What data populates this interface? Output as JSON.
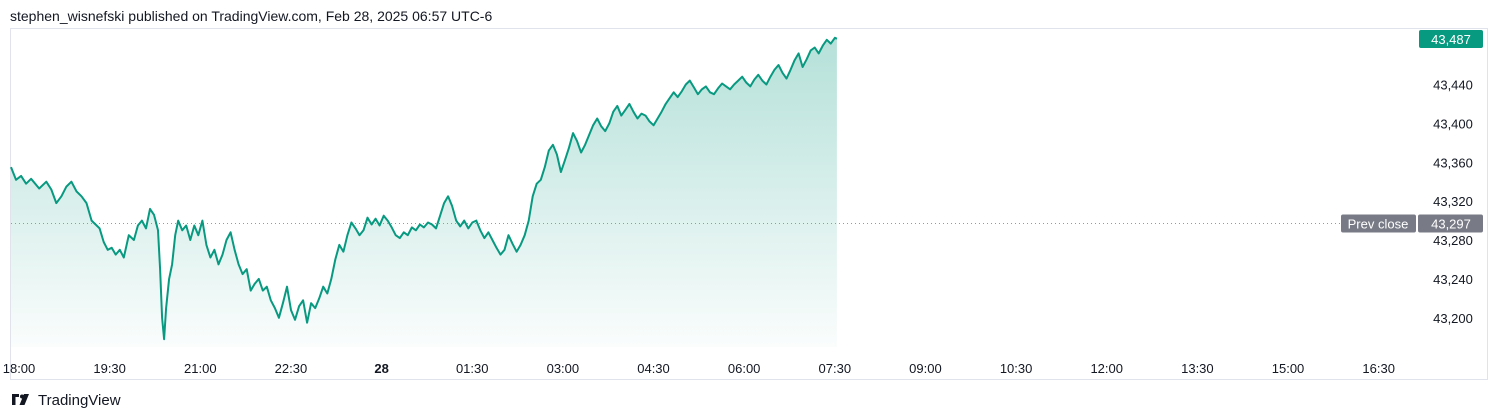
{
  "header": {
    "published_text": "stephen_wisnefski published on TradingView.com, Feb 28, 2025 06:57 UTC-6"
  },
  "footer": {
    "brand": "TradingView"
  },
  "colors": {
    "line": "#089981",
    "fill_top": "#c8ebe3",
    "label_bg": "#089981",
    "prev_close_bg": "#787b86",
    "grid": "#e0e3eb"
  },
  "chart_data": {
    "type": "area",
    "title": "",
    "xlabel": "",
    "ylabel": "",
    "ylim": [
      43170,
      43495
    ],
    "x_ticks": [
      {
        "label": "18:00",
        "t": 0
      },
      {
        "label": "19:30",
        "t": 90
      },
      {
        "label": "21:00",
        "t": 180
      },
      {
        "label": "22:30",
        "t": 270
      },
      {
        "label": "28",
        "t": 360,
        "bold": true
      },
      {
        "label": "01:30",
        "t": 450
      },
      {
        "label": "03:00",
        "t": 540
      },
      {
        "label": "04:30",
        "t": 630
      },
      {
        "label": "06:00",
        "t": 720
      },
      {
        "label": "07:30",
        "t": 810
      },
      {
        "label": "09:00",
        "t": 900
      },
      {
        "label": "10:30",
        "t": 990
      },
      {
        "label": "12:00",
        "t": 1080
      },
      {
        "label": "13:30",
        "t": 1170
      },
      {
        "label": "15:00",
        "t": 1260
      },
      {
        "label": "16:30",
        "t": 1350
      }
    ],
    "x_domain_minutes": [
      0,
      1395
    ],
    "y_ticks": [
      43200,
      43240,
      43280,
      43320,
      43360,
      43400,
      43440
    ],
    "last_price": 43487,
    "last_price_label": "43,487",
    "prev_close": 43297,
    "prev_close_label": "43,297",
    "prev_close_text": "Prev close",
    "series": [
      {
        "points": [
          [
            0,
            43355
          ],
          [
            5,
            43342
          ],
          [
            10,
            43346
          ],
          [
            15,
            43338
          ],
          [
            20,
            43343
          ],
          [
            28,
            43333
          ],
          [
            35,
            43340
          ],
          [
            40,
            43332
          ],
          [
            45,
            43318
          ],
          [
            50,
            43325
          ],
          [
            55,
            43335
          ],
          [
            60,
            43340
          ],
          [
            65,
            43330
          ],
          [
            70,
            43325
          ],
          [
            75,
            43318
          ],
          [
            80,
            43300
          ],
          [
            88,
            43292
          ],
          [
            92,
            43278
          ],
          [
            96,
            43270
          ],
          [
            100,
            43272
          ],
          [
            104,
            43265
          ],
          [
            108,
            43270
          ],
          [
            112,
            43262
          ],
          [
            117,
            43285
          ],
          [
            122,
            43280
          ],
          [
            126,
            43295
          ],
          [
            130,
            43300
          ],
          [
            134,
            43292
          ],
          [
            138,
            43312
          ],
          [
            142,
            43306
          ],
          [
            146,
            43290
          ],
          [
            148,
            43250
          ],
          [
            150,
            43200
          ],
          [
            152,
            43178
          ],
          [
            154,
            43210
          ],
          [
            157,
            43240
          ],
          [
            160,
            43255
          ],
          [
            163,
            43285
          ],
          [
            166,
            43300
          ],
          [
            170,
            43290
          ],
          [
            174,
            43295
          ],
          [
            178,
            43280
          ],
          [
            182,
            43295
          ],
          [
            186,
            43285
          ],
          [
            190,
            43300
          ],
          [
            194,
            43275
          ],
          [
            198,
            43262
          ],
          [
            202,
            43270
          ],
          [
            206,
            43255
          ],
          [
            210,
            43265
          ],
          [
            214,
            43280
          ],
          [
            218,
            43288
          ],
          [
            222,
            43270
          ],
          [
            226,
            43255
          ],
          [
            230,
            43245
          ],
          [
            234,
            43250
          ],
          [
            238,
            43228
          ],
          [
            242,
            43235
          ],
          [
            246,
            43240
          ],
          [
            250,
            43228
          ],
          [
            254,
            43232
          ],
          [
            258,
            43218
          ],
          [
            262,
            43210
          ],
          [
            266,
            43200
          ],
          [
            270,
            43215
          ],
          [
            274,
            43232
          ],
          [
            278,
            43208
          ],
          [
            282,
            43198
          ],
          [
            286,
            43212
          ],
          [
            290,
            43218
          ],
          [
            294,
            43195
          ],
          [
            298,
            43215
          ],
          [
            302,
            43210
          ],
          [
            306,
            43220
          ],
          [
            310,
            43232
          ],
          [
            314,
            43225
          ],
          [
            318,
            43240
          ],
          [
            322,
            43260
          ],
          [
            326,
            43275
          ],
          [
            330,
            43268
          ],
          [
            334,
            43285
          ],
          [
            338,
            43298
          ],
          [
            342,
            43292
          ],
          [
            346,
            43285
          ],
          [
            350,
            43290
          ],
          [
            354,
            43303
          ],
          [
            358,
            43296
          ],
          [
            362,
            43302
          ],
          [
            366,
            43295
          ],
          [
            370,
            43305
          ],
          [
            374,
            43300
          ],
          [
            378,
            43293
          ],
          [
            382,
            43285
          ],
          [
            386,
            43282
          ],
          [
            390,
            43288
          ],
          [
            394,
            43285
          ],
          [
            398,
            43293
          ],
          [
            402,
            43290
          ],
          [
            406,
            43296
          ],
          [
            410,
            43293
          ],
          [
            414,
            43298
          ],
          [
            418,
            43296
          ],
          [
            422,
            43292
          ],
          [
            426,
            43305
          ],
          [
            430,
            43318
          ],
          [
            434,
            43325
          ],
          [
            438,
            43315
          ],
          [
            442,
            43300
          ],
          [
            446,
            43294
          ],
          [
            450,
            43300
          ],
          [
            454,
            43292
          ],
          [
            458,
            43298
          ],
          [
            462,
            43300
          ],
          [
            466,
            43290
          ],
          [
            470,
            43282
          ],
          [
            474,
            43288
          ],
          [
            478,
            43280
          ],
          [
            482,
            43272
          ],
          [
            486,
            43265
          ],
          [
            490,
            43270
          ],
          [
            494,
            43285
          ],
          [
            498,
            43276
          ],
          [
            502,
            43268
          ],
          [
            506,
            43275
          ],
          [
            510,
            43285
          ],
          [
            514,
            43300
          ],
          [
            518,
            43325
          ],
          [
            522,
            43338
          ],
          [
            526,
            43342
          ],
          [
            530,
            43355
          ],
          [
            534,
            43372
          ],
          [
            538,
            43378
          ],
          [
            542,
            43368
          ],
          [
            546,
            43350
          ],
          [
            550,
            43362
          ],
          [
            554,
            43375
          ],
          [
            558,
            43390
          ],
          [
            562,
            43382
          ],
          [
            566,
            43370
          ],
          [
            570,
            43378
          ],
          [
            574,
            43388
          ],
          [
            578,
            43398
          ],
          [
            582,
            43405
          ],
          [
            586,
            43397
          ],
          [
            590,
            43392
          ],
          [
            594,
            43400
          ],
          [
            598,
            43412
          ],
          [
            602,
            43418
          ],
          [
            606,
            43408
          ],
          [
            610,
            43414
          ],
          [
            614,
            43420
          ],
          [
            618,
            43412
          ],
          [
            622,
            43405
          ],
          [
            626,
            43410
          ],
          [
            630,
            43408
          ],
          [
            634,
            43402
          ],
          [
            638,
            43398
          ],
          [
            642,
            43405
          ],
          [
            646,
            43412
          ],
          [
            650,
            43420
          ],
          [
            654,
            43426
          ],
          [
            658,
            43432
          ],
          [
            662,
            43427
          ],
          [
            666,
            43433
          ],
          [
            670,
            43440
          ],
          [
            674,
            43444
          ],
          [
            678,
            43437
          ],
          [
            682,
            43430
          ],
          [
            686,
            43435
          ],
          [
            690,
            43438
          ],
          [
            694,
            43432
          ],
          [
            698,
            43430
          ],
          [
            702,
            43436
          ],
          [
            706,
            43441
          ],
          [
            710,
            43438
          ],
          [
            714,
            43435
          ],
          [
            718,
            43440
          ],
          [
            722,
            43444
          ],
          [
            726,
            43448
          ],
          [
            730,
            43442
          ],
          [
            734,
            43438
          ],
          [
            738,
            43445
          ],
          [
            742,
            43450
          ],
          [
            746,
            43444
          ],
          [
            750,
            43440
          ],
          [
            754,
            43448
          ],
          [
            758,
            43455
          ],
          [
            762,
            43460
          ],
          [
            766,
            43452
          ],
          [
            770,
            43446
          ],
          [
            774,
            43455
          ],
          [
            778,
            43465
          ],
          [
            782,
            43472
          ],
          [
            786,
            43458
          ],
          [
            790,
            43466
          ],
          [
            794,
            43475
          ],
          [
            798,
            43478
          ],
          [
            802,
            43472
          ],
          [
            806,
            43480
          ],
          [
            810,
            43486
          ],
          [
            814,
            43482
          ],
          [
            818,
            43488
          ],
          [
            820,
            43487
          ]
        ]
      }
    ]
  }
}
